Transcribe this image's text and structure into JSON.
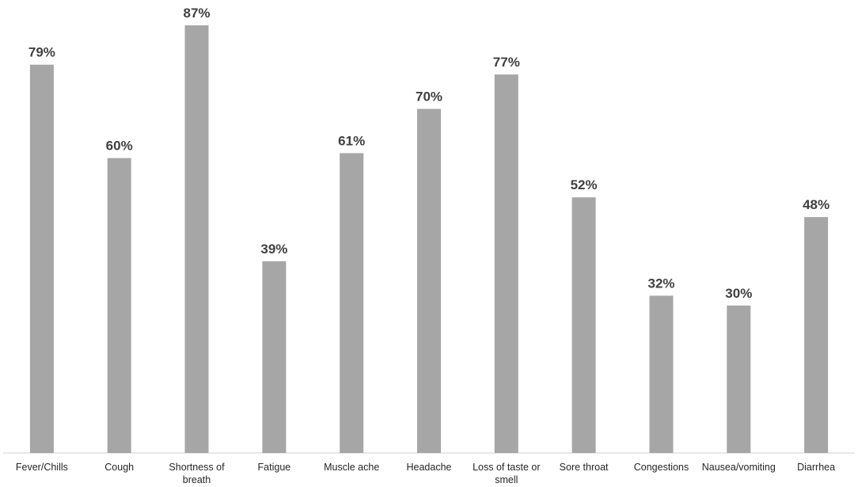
{
  "chart_data": {
    "type": "bar",
    "categories": [
      [
        "Fever/Chills"
      ],
      [
        "Cough"
      ],
      [
        "Shortness of",
        "breath"
      ],
      [
        "Fatigue"
      ],
      [
        "Muscle ache"
      ],
      [
        "Headache"
      ],
      [
        "Loss of taste or",
        "smell"
      ],
      [
        "Sore throat"
      ],
      [
        "Congestions"
      ],
      [
        "Nausea/vomiting"
      ],
      [
        "Diarrhea"
      ]
    ],
    "values": [
      79,
      60,
      87,
      39,
      61,
      70,
      77,
      52,
      32,
      30,
      48
    ],
    "value_labels": [
      "79%",
      "60%",
      "87%",
      "39%",
      "61%",
      "70%",
      "77%",
      "52%",
      "32%",
      "30%",
      "48%"
    ],
    "unit": "%",
    "title": "",
    "xlabel": "",
    "ylabel": "",
    "ylim": [
      0,
      100
    ],
    "grid": false,
    "legend": "none",
    "colors": {
      "bar": "#a6a6a6",
      "label": "#404040",
      "axis": "#d0d0d0"
    }
  }
}
